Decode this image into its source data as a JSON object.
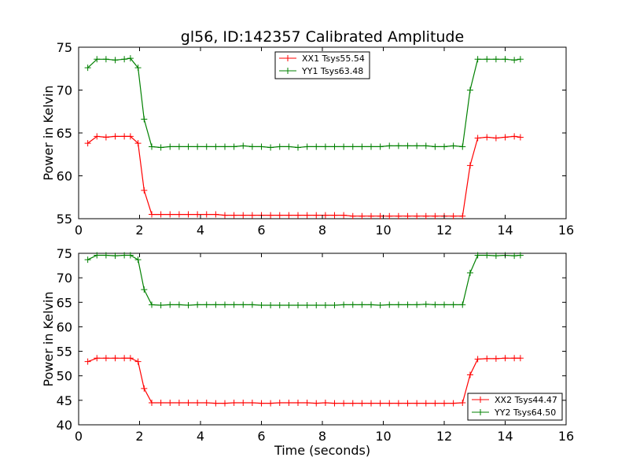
{
  "title": "gl56, ID:142357 Calibrated Amplitude",
  "chart_data": [
    {
      "type": "line",
      "xlabel": "",
      "ylabel": "Power in Kelvin",
      "xlim": [
        0,
        16
      ],
      "ylim": [
        55,
        75
      ],
      "xticks": [
        "0",
        "2",
        "4",
        "6",
        "8",
        "10",
        "12",
        "14",
        "16"
      ],
      "yticks": [
        "55",
        "60",
        "65",
        "70",
        "75"
      ],
      "legend_position": "upper-center",
      "series": [
        {
          "name": "XX1 Tsys55.54",
          "color": "#ff0000",
          "x": [
            0.3,
            0.6,
            0.9,
            1.2,
            1.5,
            1.7,
            1.95,
            2.15,
            2.4,
            2.7,
            3.0,
            3.3,
            3.6,
            3.9,
            4.2,
            4.5,
            4.8,
            5.1,
            5.4,
            5.7,
            6.0,
            6.3,
            6.6,
            6.9,
            7.2,
            7.5,
            7.8,
            8.1,
            8.4,
            8.7,
            9.0,
            9.3,
            9.6,
            9.9,
            10.2,
            10.5,
            10.8,
            11.1,
            11.4,
            11.7,
            12.0,
            12.3,
            12.6,
            12.85,
            13.1,
            13.4,
            13.7,
            14.0,
            14.3,
            14.5
          ],
          "values": [
            63.8,
            64.6,
            64.5,
            64.6,
            64.6,
            64.6,
            63.8,
            58.3,
            55.5,
            55.5,
            55.5,
            55.5,
            55.5,
            55.5,
            55.5,
            55.5,
            55.4,
            55.4,
            55.4,
            55.4,
            55.4,
            55.4,
            55.4,
            55.4,
            55.4,
            55.4,
            55.4,
            55.4,
            55.4,
            55.4,
            55.3,
            55.3,
            55.3,
            55.3,
            55.3,
            55.3,
            55.3,
            55.3,
            55.3,
            55.3,
            55.3,
            55.3,
            55.3,
            61.2,
            64.4,
            64.5,
            64.4,
            64.5,
            64.6,
            64.5
          ]
        },
        {
          "name": "YY1 Tsys63.48",
          "color": "#008000",
          "x": [
            0.3,
            0.6,
            0.9,
            1.2,
            1.5,
            1.7,
            1.95,
            2.15,
            2.4,
            2.7,
            3.0,
            3.3,
            3.6,
            3.9,
            4.2,
            4.5,
            4.8,
            5.1,
            5.4,
            5.7,
            6.0,
            6.3,
            6.6,
            6.9,
            7.2,
            7.5,
            7.8,
            8.1,
            8.4,
            8.7,
            9.0,
            9.3,
            9.6,
            9.9,
            10.2,
            10.5,
            10.8,
            11.1,
            11.4,
            11.7,
            12.0,
            12.3,
            12.6,
            12.85,
            13.1,
            13.4,
            13.7,
            14.0,
            14.3,
            14.5
          ],
          "values": [
            72.6,
            73.6,
            73.6,
            73.5,
            73.6,
            73.7,
            72.6,
            66.6,
            63.4,
            63.3,
            63.4,
            63.4,
            63.4,
            63.4,
            63.4,
            63.4,
            63.4,
            63.4,
            63.5,
            63.4,
            63.4,
            63.3,
            63.4,
            63.4,
            63.3,
            63.4,
            63.4,
            63.4,
            63.4,
            63.4,
            63.4,
            63.4,
            63.4,
            63.4,
            63.5,
            63.5,
            63.5,
            63.5,
            63.5,
            63.4,
            63.4,
            63.5,
            63.4,
            70.0,
            73.6,
            73.6,
            73.6,
            73.6,
            73.5,
            73.6
          ]
        }
      ]
    },
    {
      "type": "line",
      "xlabel": "Time (seconds)",
      "ylabel": "Power in Kelvin",
      "xlim": [
        0,
        16
      ],
      "ylim": [
        40,
        75
      ],
      "xticks": [
        "0",
        "2",
        "4",
        "6",
        "8",
        "10",
        "12",
        "14",
        "16"
      ],
      "yticks": [
        "40",
        "45",
        "50",
        "55",
        "60",
        "65",
        "70",
        "75"
      ],
      "legend_position": "lower-right",
      "series": [
        {
          "name": "XX2 Tsys44.47",
          "color": "#ff0000",
          "x": [
            0.3,
            0.6,
            0.9,
            1.2,
            1.5,
            1.7,
            1.95,
            2.15,
            2.4,
            2.7,
            3.0,
            3.3,
            3.6,
            3.9,
            4.2,
            4.5,
            4.8,
            5.1,
            5.4,
            5.7,
            6.0,
            6.3,
            6.6,
            6.9,
            7.2,
            7.5,
            7.8,
            8.1,
            8.4,
            8.7,
            9.0,
            9.3,
            9.6,
            9.9,
            10.2,
            10.5,
            10.8,
            11.1,
            11.4,
            11.7,
            12.0,
            12.3,
            12.6,
            12.85,
            13.1,
            13.4,
            13.7,
            14.0,
            14.3,
            14.5
          ],
          "values": [
            52.9,
            53.6,
            53.6,
            53.6,
            53.6,
            53.6,
            52.9,
            47.4,
            44.5,
            44.5,
            44.5,
            44.5,
            44.5,
            44.5,
            44.5,
            44.4,
            44.4,
            44.5,
            44.5,
            44.5,
            44.4,
            44.4,
            44.5,
            44.5,
            44.5,
            44.5,
            44.4,
            44.5,
            44.4,
            44.4,
            44.4,
            44.4,
            44.4,
            44.4,
            44.4,
            44.4,
            44.4,
            44.4,
            44.4,
            44.4,
            44.4,
            44.4,
            44.5,
            50.2,
            53.4,
            53.5,
            53.5,
            53.6,
            53.6,
            53.6
          ]
        },
        {
          "name": "YY2 Tsys64.50",
          "color": "#008000",
          "x": [
            0.3,
            0.6,
            0.9,
            1.2,
            1.5,
            1.7,
            1.95,
            2.15,
            2.4,
            2.7,
            3.0,
            3.3,
            3.6,
            3.9,
            4.2,
            4.5,
            4.8,
            5.1,
            5.4,
            5.7,
            6.0,
            6.3,
            6.6,
            6.9,
            7.2,
            7.5,
            7.8,
            8.1,
            8.4,
            8.7,
            9.0,
            9.3,
            9.6,
            9.9,
            10.2,
            10.5,
            10.8,
            11.1,
            11.4,
            11.7,
            12.0,
            12.3,
            12.6,
            12.85,
            13.1,
            13.4,
            13.7,
            14.0,
            14.3,
            14.5
          ],
          "values": [
            73.7,
            74.6,
            74.6,
            74.5,
            74.6,
            74.6,
            73.7,
            67.6,
            64.5,
            64.4,
            64.5,
            64.5,
            64.4,
            64.5,
            64.5,
            64.5,
            64.5,
            64.5,
            64.5,
            64.5,
            64.4,
            64.4,
            64.4,
            64.4,
            64.4,
            64.4,
            64.4,
            64.4,
            64.4,
            64.5,
            64.5,
            64.5,
            64.5,
            64.4,
            64.5,
            64.5,
            64.5,
            64.5,
            64.6,
            64.5,
            64.5,
            64.5,
            64.5,
            71.0,
            74.6,
            74.6,
            74.5,
            74.6,
            74.5,
            74.6
          ]
        }
      ]
    }
  ]
}
